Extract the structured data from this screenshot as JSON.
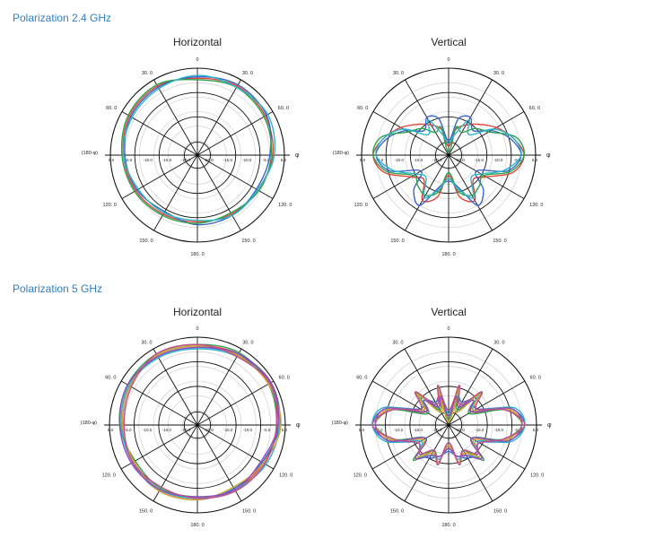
{
  "sections": [
    {
      "title": "Polarization 2.4 GHz"
    },
    {
      "title": "Polarization 5 GHz"
    }
  ],
  "polar_labels": {
    "top": "0",
    "bottom": "180. 0",
    "tl": "30. 0",
    "tr": "30. 0",
    "ml": "60. 0",
    "mr": "60. 0",
    "bl": "120. 0",
    "br": "120. 0",
    "bbl": "150. 0",
    "bbr": "150. 0",
    "left_axis": "(180-φ)",
    "right_axis": "φ",
    "radial": [
      "5.0",
      "-5.0",
      "-10.0",
      "-15.0",
      "-20.0"
    ]
  },
  "colors": [
    "#e0453a",
    "#3a66c8",
    "#2ea14c",
    "#2bb7c9",
    "#d4a52a",
    "#8e4fc2",
    "#c64b8f"
  ],
  "chart_data": [
    {
      "type": "polar",
      "title": "Horizontal",
      "group": "Polarization 2.4 GHz",
      "r_range": [
        -25,
        5
      ],
      "theta_deg": [
        0,
        30,
        60,
        90,
        120,
        150,
        180,
        210,
        240,
        270,
        300,
        330
      ],
      "series": [
        {
          "values": [
            1.5,
            2.5,
            2.0,
            1.0,
            -1.0,
            -1.5,
            -2.0,
            -1.5,
            -0.5,
            0.5,
            2.0,
            2.5
          ]
        },
        {
          "values": [
            2.0,
            3.0,
            2.5,
            0.0,
            -1.5,
            -1.0,
            -1.0,
            -2.5,
            -1.0,
            0.0,
            1.5,
            2.0
          ]
        },
        {
          "values": [
            1.0,
            2.0,
            1.5,
            0.5,
            -0.5,
            -2.0,
            -1.5,
            -1.0,
            0.0,
            1.0,
            2.5,
            3.0
          ]
        },
        {
          "values": [
            2.5,
            2.0,
            3.0,
            1.5,
            -1.0,
            -1.0,
            -2.5,
            -2.0,
            -1.5,
            0.5,
            1.0,
            1.5
          ]
        }
      ]
    },
    {
      "type": "polar",
      "title": "Vertical",
      "group": "Polarization 2.4 GHz",
      "r_range": [
        -25,
        5
      ],
      "theta_deg": [
        0,
        15,
        30,
        45,
        60,
        75,
        90,
        105,
        120,
        135,
        150,
        165,
        180,
        195,
        210,
        225,
        240,
        255,
        270,
        285,
        300,
        315,
        330,
        345
      ],
      "series": [
        {
          "values": [
            -22,
            -16,
            -13,
            -10,
            -6,
            -2,
            1,
            -2,
            -10,
            -13,
            -7,
            -10,
            -18,
            -10,
            -7,
            -13,
            -10,
            -2,
            1,
            -2,
            -6,
            -10,
            -13,
            -16
          ]
        },
        {
          "values": [
            -20,
            -12,
            -10,
            -13,
            -8,
            -3,
            0,
            -4,
            -14,
            -8,
            -5,
            -14,
            -16,
            -14,
            -5,
            -8,
            -14,
            -4,
            0,
            -3,
            -8,
            -13,
            -10,
            -12
          ]
        },
        {
          "values": [
            -24,
            -15,
            -16,
            -12,
            -9,
            -1,
            1,
            -3,
            -11,
            -10,
            -9,
            -12,
            -19,
            -12,
            -9,
            -10,
            -11,
            -3,
            1,
            -1,
            -9,
            -12,
            -16,
            -15
          ]
        },
        {
          "values": [
            -21,
            -18,
            -11,
            -15,
            -7,
            -2,
            0,
            -5,
            -12,
            -14,
            -8,
            -13,
            -17,
            -13,
            -8,
            -14,
            -12,
            -5,
            0,
            -2,
            -7,
            -15,
            -11,
            -18
          ]
        }
      ]
    },
    {
      "type": "polar",
      "title": "Horizontal",
      "group": "Polarization 5 GHz",
      "r_range": [
        -25,
        5
      ],
      "theta_deg": [
        0,
        30,
        60,
        90,
        120,
        150,
        180,
        210,
        240,
        270,
        300,
        330
      ],
      "series": [
        {
          "values": [
            2.0,
            3.0,
            3.5,
            2.5,
            1.0,
            0.5,
            0.0,
            0.5,
            0.0,
            1.0,
            2.0,
            2.5
          ]
        },
        {
          "values": [
            1.5,
            2.5,
            4.0,
            3.0,
            0.5,
            0.0,
            0.5,
            1.0,
            0.5,
            0.5,
            1.5,
            2.0
          ]
        },
        {
          "values": [
            2.5,
            3.5,
            3.0,
            2.0,
            1.5,
            1.0,
            -0.5,
            0.0,
            -0.5,
            1.5,
            2.5,
            3.0
          ]
        },
        {
          "values": [
            1.0,
            2.0,
            3.5,
            3.0,
            2.0,
            0.5,
            0.0,
            0.5,
            0.5,
            1.0,
            2.0,
            1.5
          ]
        },
        {
          "values": [
            2.0,
            2.5,
            3.0,
            3.5,
            1.0,
            -0.5,
            0.5,
            1.0,
            0.0,
            0.5,
            1.5,
            2.5
          ]
        },
        {
          "values": [
            1.5,
            3.0,
            4.0,
            2.5,
            0.0,
            0.5,
            -0.5,
            0.5,
            1.0,
            1.5,
            2.5,
            2.0
          ]
        },
        {
          "values": [
            2.5,
            2.0,
            3.5,
            2.0,
            1.5,
            1.0,
            0.0,
            -0.5,
            0.5,
            0.0,
            1.0,
            3.0
          ]
        }
      ]
    },
    {
      "type": "polar",
      "title": "Vertical",
      "group": "Polarization 5 GHz",
      "r_range": [
        -25,
        5
      ],
      "theta_deg": [
        0,
        15,
        30,
        45,
        60,
        75,
        90,
        105,
        120,
        135,
        150,
        165,
        180,
        195,
        210,
        225,
        240,
        255,
        270,
        285,
        300,
        315,
        330,
        345
      ],
      "series": [
        {
          "values": [
            -22,
            -12,
            -18,
            -10,
            -16,
            -4,
            0,
            -5,
            -15,
            -9,
            -14,
            -12,
            -18,
            -12,
            -14,
            -9,
            -15,
            -5,
            0,
            -4,
            -16,
            -10,
            -18,
            -12
          ]
        },
        {
          "values": [
            -20,
            -14,
            -16,
            -12,
            -14,
            -3,
            1,
            -4,
            -13,
            -11,
            -12,
            -14,
            -16,
            -14,
            -12,
            -11,
            -13,
            -4,
            1,
            -3,
            -14,
            -12,
            -16,
            -14
          ]
        },
        {
          "values": [
            -23,
            -11,
            -19,
            -9,
            -17,
            -5,
            0,
            -6,
            -16,
            -8,
            -15,
            -11,
            -19,
            -11,
            -15,
            -8,
            -16,
            -6,
            0,
            -5,
            -17,
            -9,
            -19,
            -11
          ]
        },
        {
          "values": [
            -21,
            -13,
            -17,
            -11,
            -15,
            -2,
            1,
            -3,
            -14,
            -10,
            -13,
            -13,
            -17,
            -13,
            -13,
            -10,
            -14,
            -3,
            1,
            -2,
            -15,
            -11,
            -17,
            -13
          ]
        },
        {
          "values": [
            -24,
            -12,
            -20,
            -10,
            -15,
            -4,
            0,
            -5,
            -15,
            -10,
            -14,
            -12,
            -18,
            -12,
            -14,
            -10,
            -15,
            -5,
            0,
            -4,
            -15,
            -10,
            -20,
            -12
          ]
        },
        {
          "values": [
            -22,
            -15,
            -18,
            -13,
            -16,
            -3,
            0,
            -4,
            -16,
            -9,
            -13,
            -14,
            -17,
            -14,
            -13,
            -9,
            -16,
            -4,
            0,
            -3,
            -16,
            -13,
            -18,
            -15
          ]
        },
        {
          "values": [
            -20,
            -11,
            -17,
            -9,
            -14,
            -5,
            1,
            -6,
            -13,
            -11,
            -15,
            -11,
            -19,
            -11,
            -15,
            -11,
            -13,
            -6,
            1,
            -5,
            -14,
            -9,
            -17,
            -11
          ]
        }
      ]
    }
  ]
}
